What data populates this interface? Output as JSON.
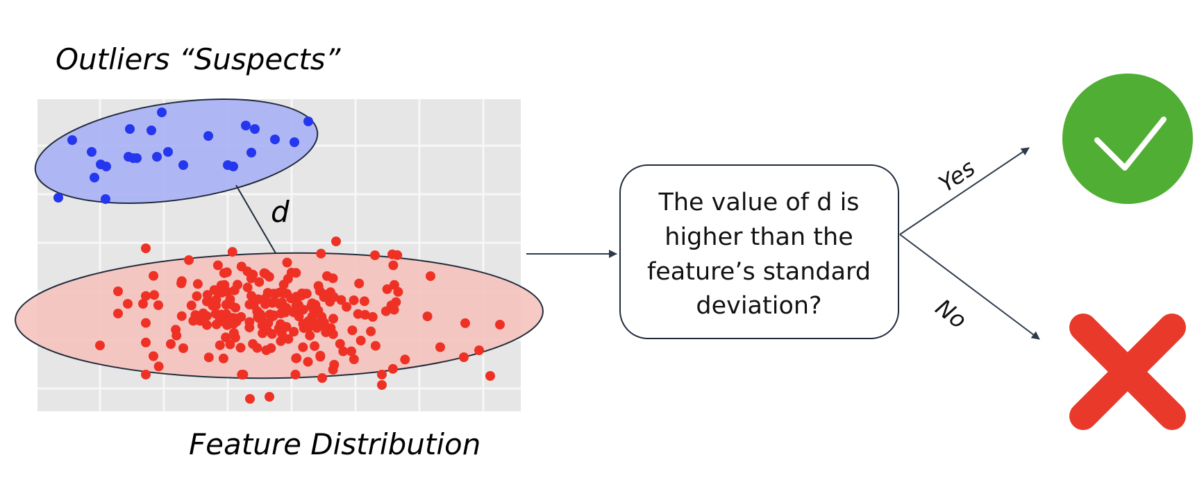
{
  "title_outliers": "Outliers “Suspects”",
  "title_feature": "Feature Distribution",
  "distance_label": "d",
  "question_lines": [
    "The value of d is",
    "higher than the",
    "feature’s standard",
    "deviation?"
  ],
  "yes_label": "Yes",
  "no_label": "No",
  "colors": {
    "plot_bg": "#e6e6e6",
    "grid": "#f7f7f7",
    "outlier_point": "#2436ee",
    "outlier_ellipse": "#a9b0f5",
    "feature_point": "#ee3124",
    "feature_ellipse": "#f5c0bb",
    "yes_circle": "#4fae33",
    "no_cross": "#e8392b",
    "arrow": "#2e3a4a"
  },
  "icons": {
    "yes": "check-circle-icon",
    "no": "cross-icon"
  }
}
